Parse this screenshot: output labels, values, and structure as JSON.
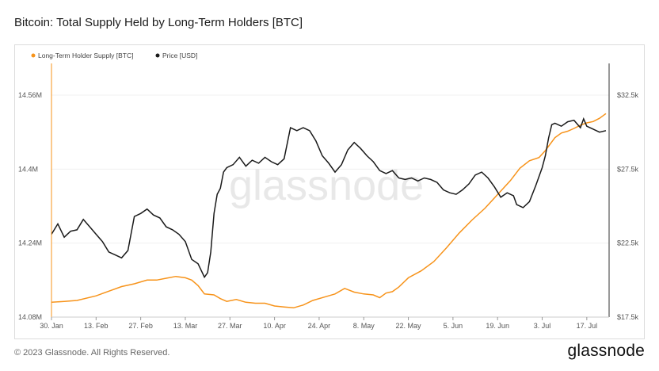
{
  "header": {
    "title": "Bitcoin: Total Supply Held by Long-Term Holders [BTC]"
  },
  "footer": {
    "copyright": "© 2023 Glassnode. All Rights Reserved.",
    "logo": "glassnode"
  },
  "watermark": "glassnode",
  "colors": {
    "lth": "#f7931a",
    "price": "#1a1a1a",
    "grid": "#f0f0f0",
    "axis": "#333333"
  },
  "chart_data": {
    "type": "line",
    "title": "Bitcoin: Total Supply Held by Long-Term Holders [BTC]",
    "legend_position": "top-left",
    "grid": true,
    "x_ticks": [
      "30. Jan",
      "13. Feb",
      "27. Feb",
      "13. Mar",
      "27. Mar",
      "10. Apr",
      "24. Apr",
      "8. May",
      "22. May",
      "5. Jun",
      "19. Jun",
      "3. Jul",
      "17. Jul"
    ],
    "x_range_days": [
      0,
      175
    ],
    "left_axis": {
      "ticks": [
        "14.08M",
        "14.24M",
        "14.4M",
        "14.56M"
      ],
      "range_millions": [
        14.08,
        14.56
      ]
    },
    "right_axis": {
      "ticks": [
        "$17.5k",
        "$22.5k",
        "$27.5k",
        "$32.5k"
      ],
      "range_k": [
        17.5,
        32.5
      ]
    },
    "series": [
      {
        "name": "Long-Term Holder Supply [BTC]",
        "axis": "left",
        "unit": "M BTC",
        "points": [
          [
            0,
            14.112
          ],
          [
            4,
            14.114
          ],
          [
            8,
            14.116
          ],
          [
            14,
            14.126
          ],
          [
            18,
            14.136
          ],
          [
            22,
            14.146
          ],
          [
            26,
            14.152
          ],
          [
            30,
            14.16
          ],
          [
            33,
            14.16
          ],
          [
            36,
            14.164
          ],
          [
            39,
            14.168
          ],
          [
            42,
            14.165
          ],
          [
            44,
            14.16
          ],
          [
            46,
            14.148
          ],
          [
            48,
            14.13
          ],
          [
            51,
            14.128
          ],
          [
            53,
            14.12
          ],
          [
            55,
            14.114
          ],
          [
            58,
            14.118
          ],
          [
            61,
            14.112
          ],
          [
            64,
            14.11
          ],
          [
            67,
            14.11
          ],
          [
            70,
            14.104
          ],
          [
            73,
            14.102
          ],
          [
            76,
            14.1
          ],
          [
            79,
            14.106
          ],
          [
            82,
            14.116
          ],
          [
            86,
            14.124
          ],
          [
            89,
            14.13
          ],
          [
            92,
            14.142
          ],
          [
            95,
            14.134
          ],
          [
            98,
            14.13
          ],
          [
            101,
            14.128
          ],
          [
            103,
            14.122
          ],
          [
            105,
            14.132
          ],
          [
            107,
            14.135
          ],
          [
            109,
            14.145
          ],
          [
            112,
            14.165
          ],
          [
            116,
            14.18
          ],
          [
            120,
            14.2
          ],
          [
            124,
            14.23
          ],
          [
            128,
            14.262
          ],
          [
            132,
            14.29
          ],
          [
            136,
            14.315
          ],
          [
            140,
            14.345
          ],
          [
            144,
            14.375
          ],
          [
            147,
            14.402
          ],
          [
            150,
            14.418
          ],
          [
            153,
            14.425
          ],
          [
            155,
            14.44
          ],
          [
            158,
            14.468
          ],
          [
            160,
            14.478
          ],
          [
            162,
            14.482
          ],
          [
            164,
            14.488
          ],
          [
            166,
            14.495
          ],
          [
            168,
            14.5
          ],
          [
            170,
            14.503
          ],
          [
            172,
            14.51
          ],
          [
            174,
            14.52
          ]
        ]
      },
      {
        "name": "Price [USD]",
        "axis": "right",
        "unit": "k USD",
        "points": [
          [
            0,
            23.1
          ],
          [
            2,
            23.8
          ],
          [
            4,
            22.9
          ],
          [
            6,
            23.3
          ],
          [
            8,
            23.4
          ],
          [
            10,
            24.1
          ],
          [
            12,
            23.6
          ],
          [
            14,
            23.1
          ],
          [
            16,
            22.6
          ],
          [
            18,
            21.9
          ],
          [
            20,
            21.7
          ],
          [
            22,
            21.5
          ],
          [
            24,
            22.0
          ],
          [
            26,
            24.3
          ],
          [
            28,
            24.5
          ],
          [
            30,
            24.8
          ],
          [
            32,
            24.4
          ],
          [
            34,
            24.2
          ],
          [
            36,
            23.6
          ],
          [
            38,
            23.4
          ],
          [
            40,
            23.1
          ],
          [
            42,
            22.6
          ],
          [
            44,
            21.4
          ],
          [
            46,
            21.1
          ],
          [
            48,
            20.2
          ],
          [
            49,
            20.5
          ],
          [
            50,
            21.9
          ],
          [
            51,
            24.5
          ],
          [
            52,
            25.8
          ],
          [
            53,
            26.2
          ],
          [
            54,
            27.3
          ],
          [
            55,
            27.6
          ],
          [
            57,
            27.8
          ],
          [
            59,
            28.3
          ],
          [
            61,
            27.7
          ],
          [
            63,
            28.1
          ],
          [
            65,
            27.9
          ],
          [
            67,
            28.3
          ],
          [
            69,
            28.0
          ],
          [
            71,
            27.8
          ],
          [
            73,
            28.2
          ],
          [
            75,
            30.3
          ],
          [
            77,
            30.1
          ],
          [
            79,
            30.3
          ],
          [
            81,
            30.1
          ],
          [
            83,
            29.4
          ],
          [
            85,
            28.4
          ],
          [
            87,
            27.9
          ],
          [
            89,
            27.3
          ],
          [
            91,
            27.8
          ],
          [
            93,
            28.8
          ],
          [
            95,
            29.3
          ],
          [
            97,
            28.9
          ],
          [
            99,
            28.4
          ],
          [
            101,
            28.0
          ],
          [
            103,
            27.4
          ],
          [
            105,
            27.2
          ],
          [
            107,
            27.4
          ],
          [
            109,
            26.9
          ],
          [
            111,
            26.8
          ],
          [
            113,
            26.9
          ],
          [
            115,
            26.7
          ],
          [
            117,
            26.9
          ],
          [
            119,
            26.8
          ],
          [
            121,
            26.6
          ],
          [
            123,
            26.1
          ],
          [
            125,
            25.9
          ],
          [
            127,
            25.8
          ],
          [
            129,
            26.1
          ],
          [
            131,
            26.5
          ],
          [
            133,
            27.1
          ],
          [
            135,
            27.3
          ],
          [
            137,
            26.9
          ],
          [
            139,
            26.3
          ],
          [
            141,
            25.6
          ],
          [
            143,
            25.9
          ],
          [
            145,
            25.7
          ],
          [
            146,
            25.1
          ],
          [
            148,
            24.9
          ],
          [
            150,
            25.3
          ],
          [
            152,
            26.4
          ],
          [
            154,
            27.6
          ],
          [
            155,
            28.4
          ],
          [
            156,
            29.6
          ],
          [
            157,
            30.5
          ],
          [
            158,
            30.6
          ],
          [
            160,
            30.4
          ],
          [
            162,
            30.7
          ],
          [
            164,
            30.8
          ],
          [
            166,
            30.3
          ],
          [
            167,
            30.9
          ],
          [
            168,
            30.4
          ],
          [
            170,
            30.2
          ],
          [
            172,
            30.0
          ],
          [
            174,
            30.1
          ]
        ]
      }
    ]
  }
}
